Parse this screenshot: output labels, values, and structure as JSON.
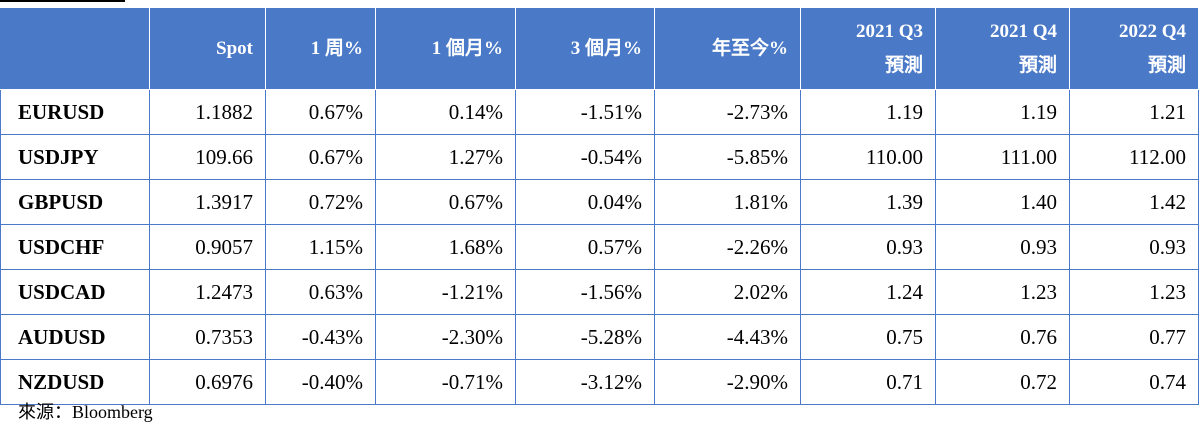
{
  "table": {
    "headers": [
      {
        "l1": "",
        "l2": ""
      },
      {
        "l1": "Spot",
        "l2": ""
      },
      {
        "l1": "1 周%",
        "l2": ""
      },
      {
        "l1": "1 個月%",
        "l2": ""
      },
      {
        "l1": "3 個月%",
        "l2": ""
      },
      {
        "l1": "年至今%",
        "l2": ""
      },
      {
        "l1": "2021 Q3",
        "l2": "預測"
      },
      {
        "l1": "2021 Q4",
        "l2": "預測"
      },
      {
        "l1": "2022 Q4",
        "l2": "預測"
      }
    ],
    "rows": [
      [
        "EURUSD",
        "1.1882",
        "0.67%",
        "0.14%",
        "-1.51%",
        "-2.73%",
        "1.19",
        "1.19",
        "1.21"
      ],
      [
        "USDJPY",
        "109.66",
        "0.67%",
        "1.27%",
        "-0.54%",
        "-5.85%",
        "110.00",
        "111.00",
        "112.00"
      ],
      [
        "GBPUSD",
        "1.3917",
        "0.72%",
        "0.67%",
        "0.04%",
        "1.81%",
        "1.39",
        "1.40",
        "1.42"
      ],
      [
        "USDCHF",
        "0.9057",
        "1.15%",
        "1.68%",
        "0.57%",
        "-2.26%",
        "0.93",
        "0.93",
        "0.93"
      ],
      [
        "USDCAD",
        "1.2473",
        "0.63%",
        "-1.21%",
        "-1.56%",
        "2.02%",
        "1.24",
        "1.23",
        "1.23"
      ],
      [
        "AUDUSD",
        "0.7353",
        "-0.43%",
        "-2.30%",
        "-5.28%",
        "-4.43%",
        "0.75",
        "0.76",
        "0.77"
      ],
      [
        "NZDUSD",
        "0.6976",
        "-0.40%",
        "-0.71%",
        "-3.12%",
        "-2.90%",
        "0.71",
        "0.72",
        "0.74"
      ]
    ]
  },
  "source": "來源：Bloomberg",
  "colors": {
    "header_bg": "#4a79c8",
    "header_text": "#ffffff",
    "border": "#4a79c8"
  }
}
